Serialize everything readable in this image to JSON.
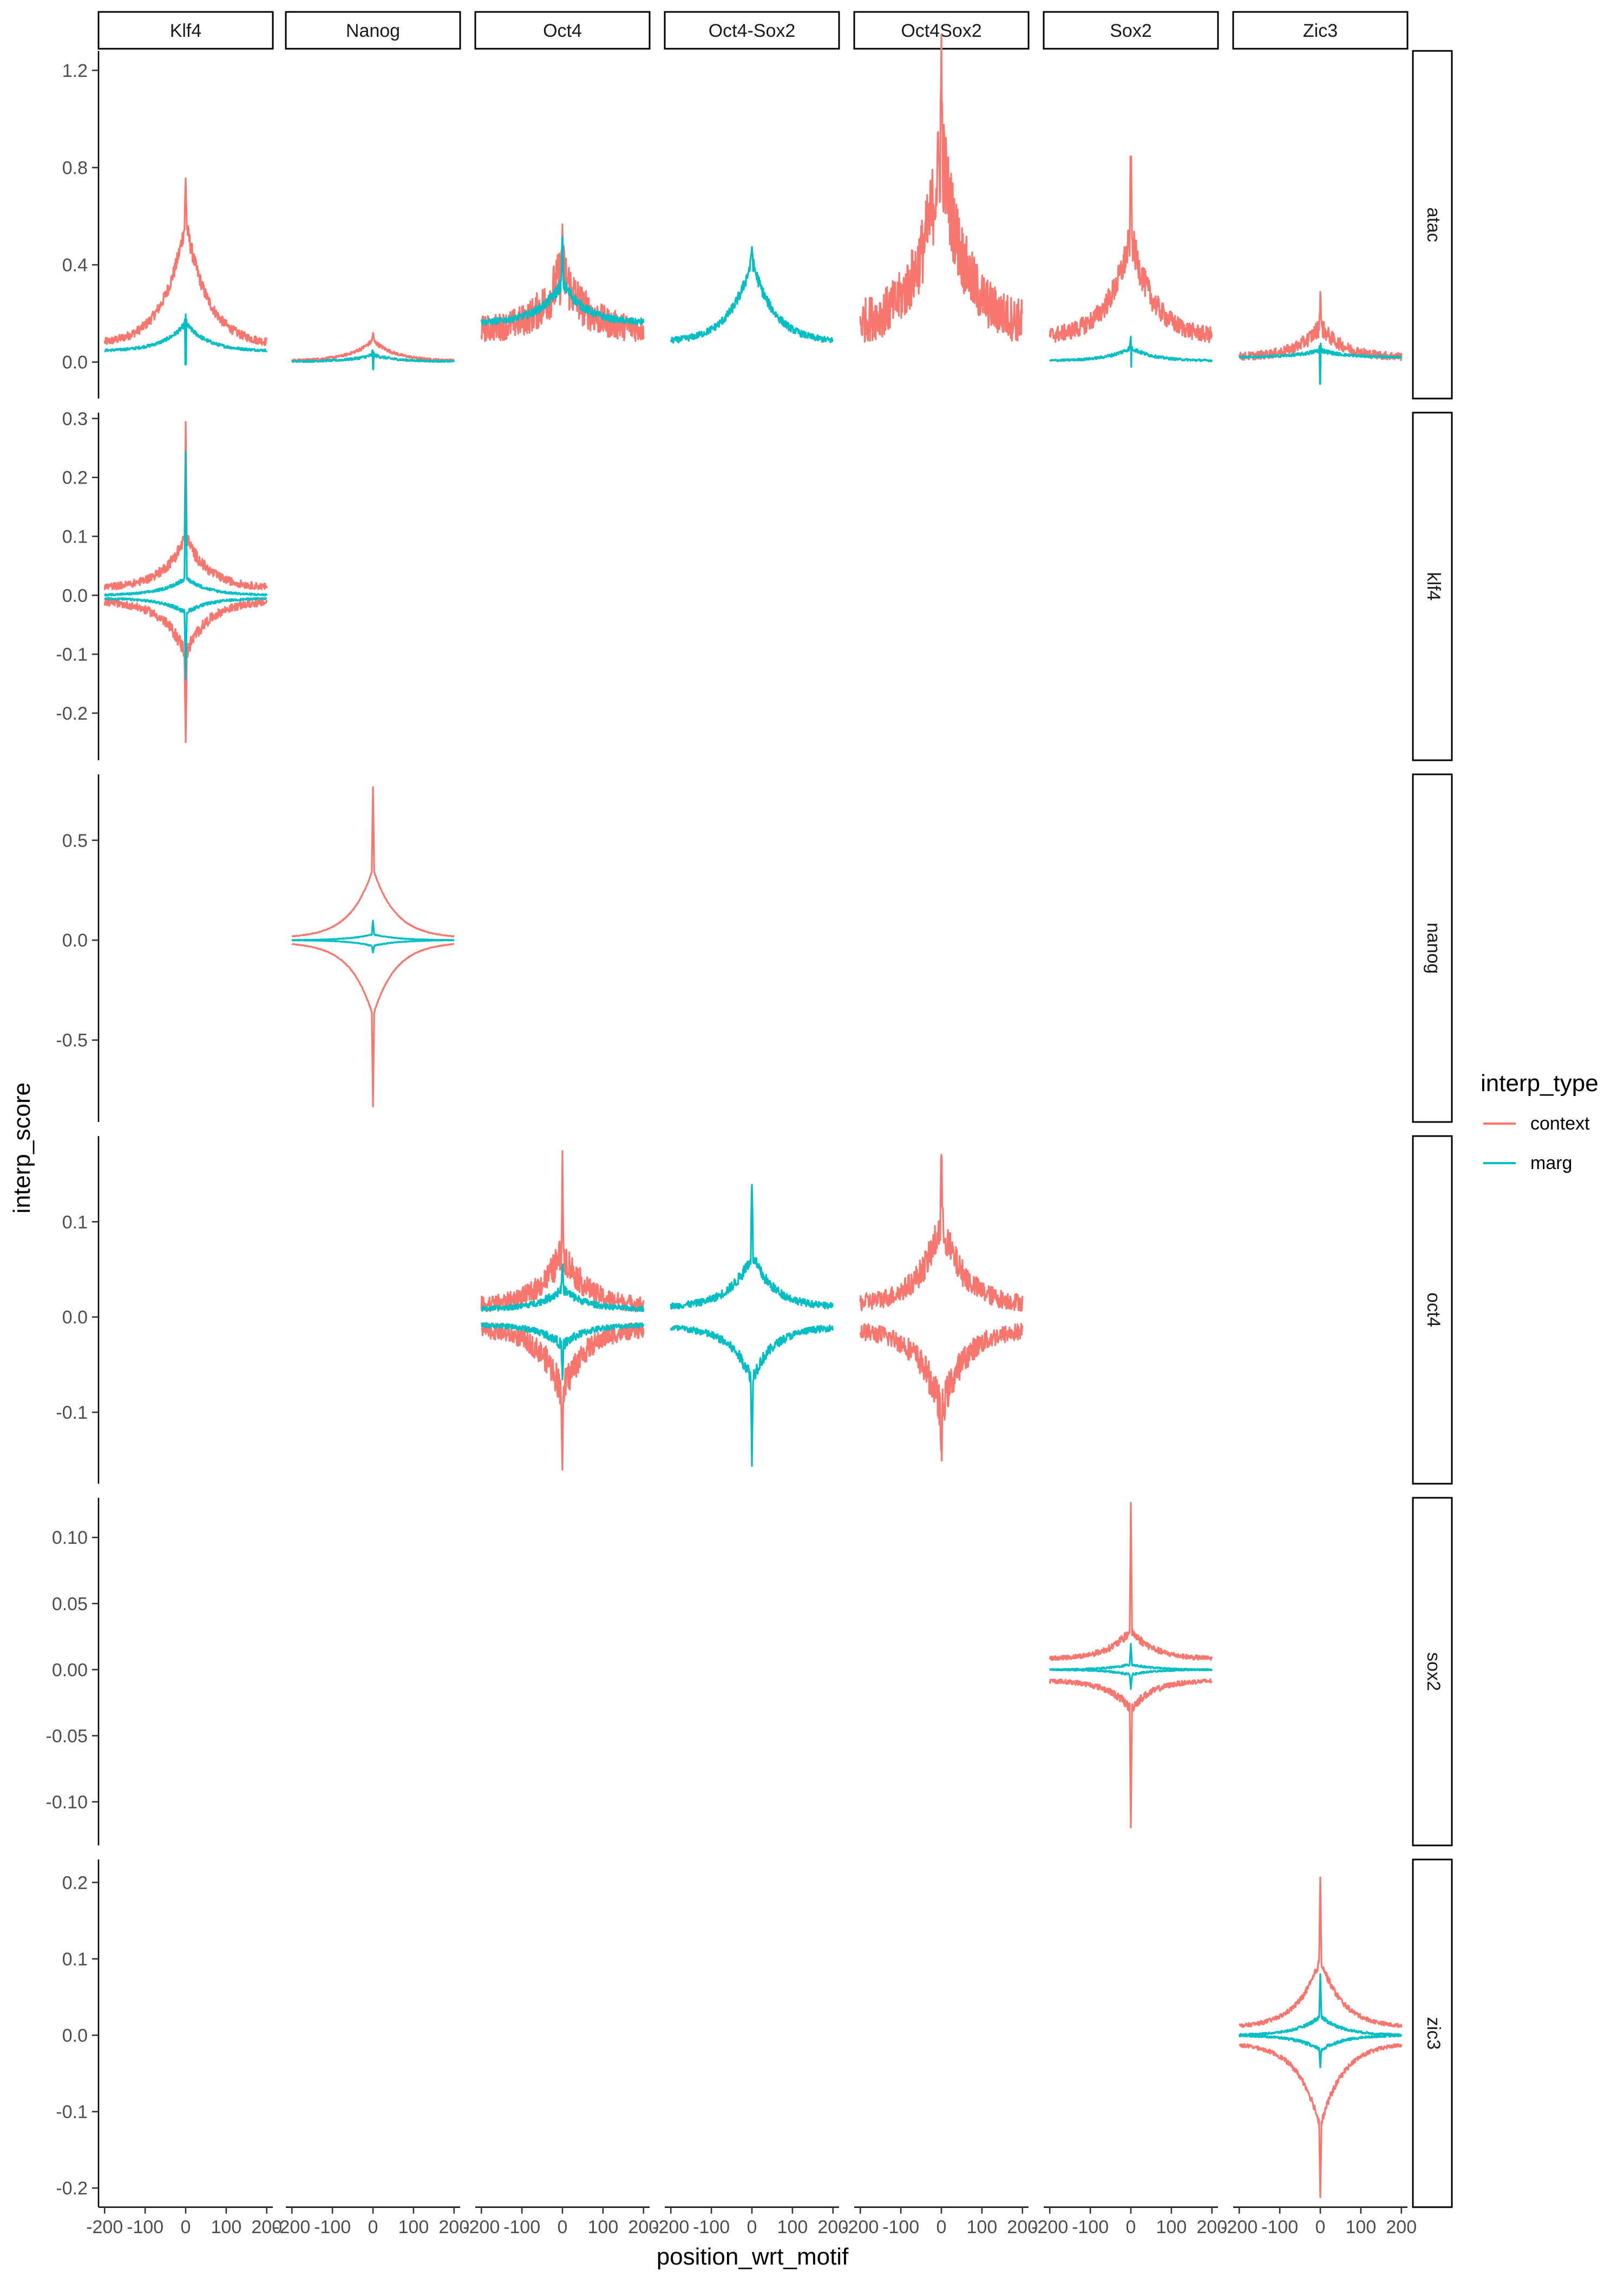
{
  "chart_data": {
    "type": "line",
    "xlabel": "position_wrt_motif",
    "ylabel": "interp_score",
    "x_range": [
      -215,
      215
    ],
    "x_ticks": [
      -200,
      -100,
      0,
      100,
      200
    ],
    "x_tick_labels": [
      "-200",
      "-100",
      "0",
      "100",
      "200"
    ],
    "grid": false,
    "legend": {
      "title": "interp_type",
      "position": "right",
      "entries": [
        {
          "label": "context",
          "color": "#F8766D"
        },
        {
          "label": "marg",
          "color": "#00BFC4"
        }
      ]
    },
    "columns": [
      "Klf4",
      "Nanog",
      "Oct4",
      "Oct4-Sox2",
      "Oct4Sox2",
      "Sox2",
      "Zic3"
    ],
    "rows": [
      {
        "name": "atac",
        "ylim": [
          -0.15,
          1.28
        ],
        "ticks": [
          0.0,
          0.4,
          0.8,
          1.2
        ],
        "tick_labels": [
          "0.0",
          "0.4",
          "0.8",
          "1.2"
        ]
      },
      {
        "name": "klf4",
        "ylim": [
          -0.28,
          0.31
        ],
        "ticks": [
          -0.2,
          -0.1,
          0.0,
          0.1,
          0.2,
          0.3
        ],
        "tick_labels": [
          "-0.2",
          "-0.1",
          "0.0",
          "0.1",
          "0.2",
          "0.3"
        ]
      },
      {
        "name": "nanog",
        "ylim": [
          -0.91,
          0.83
        ],
        "ticks": [
          -0.5,
          0.0,
          0.5
        ],
        "tick_labels": [
          "-0.5",
          "0.0",
          "0.5"
        ]
      },
      {
        "name": "oct4",
        "ylim": [
          -0.175,
          0.19
        ],
        "ticks": [
          -0.1,
          0.0,
          0.1
        ],
        "tick_labels": [
          "-0.1",
          "0.0",
          "0.1"
        ]
      },
      {
        "name": "sox2",
        "ylim": [
          -0.133,
          0.13
        ],
        "ticks": [
          -0.1,
          -0.05,
          0.0,
          0.05,
          0.1
        ],
        "tick_labels": [
          "-0.10",
          "-0.05",
          "0.00",
          "0.05",
          "0.10"
        ]
      },
      {
        "name": "zic3",
        "ylim": [
          -0.225,
          0.23
        ],
        "ticks": [
          -0.2,
          -0.1,
          0.0,
          0.1,
          0.2
        ],
        "tick_labels": [
          "-0.2",
          "-0.1",
          "0.0",
          "0.1",
          "0.2"
        ]
      }
    ],
    "panels": [
      {
        "row": "atac",
        "col": "Klf4",
        "series": [
          {
            "type": "context",
            "shape": "peak",
            "base": 0.07,
            "peak": 0.58,
            "spike": 0.75,
            "noise": 0.04
          },
          {
            "type": "marg",
            "shape": "peak",
            "base": 0.045,
            "peak": 0.16,
            "spike": 0.2,
            "noise": 0.012,
            "dip": -0.01
          }
        ]
      },
      {
        "row": "atac",
        "col": "Nanog",
        "series": [
          {
            "type": "context",
            "shape": "peak",
            "base": 0.005,
            "peak": 0.09,
            "spike": 0.12,
            "noise": 0.01
          },
          {
            "type": "marg",
            "shape": "peak",
            "base": 0.002,
            "peak": 0.03,
            "spike": 0.06,
            "noise": 0.008,
            "dip": -0.03
          }
        ]
      },
      {
        "row": "atac",
        "col": "Oct4",
        "series": [
          {
            "type": "context",
            "shape": "peak",
            "base": 0.13,
            "peak": 0.38,
            "spike": 0.56,
            "noise": 0.13
          },
          {
            "type": "marg",
            "shape": "peak",
            "base": 0.16,
            "peak": 0.33,
            "spike": 0.52,
            "noise": 0.03
          }
        ]
      },
      {
        "row": "atac",
        "col": "Oct4-Sox2",
        "series": [
          {
            "type": "marg",
            "shape": "peak",
            "base": 0.08,
            "peak": 0.42,
            "spike": 0.48,
            "noise": 0.03
          }
        ]
      },
      {
        "row": "atac",
        "col": "Oct4Sox2",
        "series": [
          {
            "type": "context",
            "shape": "peak",
            "base": 0.15,
            "peak": 0.88,
            "spike": 1.25,
            "noise": 0.22
          }
        ]
      },
      {
        "row": "atac",
        "col": "Sox2",
        "series": [
          {
            "type": "context",
            "shape": "peak",
            "base": 0.1,
            "peak": 0.52,
            "spike": 0.9,
            "noise": 0.08
          },
          {
            "type": "marg",
            "shape": "peak",
            "base": 0.005,
            "peak": 0.06,
            "spike": 0.1,
            "noise": 0.01,
            "dip": -0.02
          }
        ]
      },
      {
        "row": "atac",
        "col": "Zic3",
        "series": [
          {
            "type": "context",
            "shape": "peak",
            "base": 0.02,
            "peak": 0.15,
            "spike": 0.29,
            "noise": 0.04
          },
          {
            "type": "marg",
            "shape": "peak",
            "base": 0.02,
            "peak": 0.05,
            "spike": 0.09,
            "noise": 0.01,
            "dip": -0.09
          }
        ]
      },
      {
        "row": "klf4",
        "col": "Klf4",
        "series": [
          {
            "type": "context",
            "shape": "sym",
            "base": 0.012,
            "peak": 0.1,
            "spike": 0.29,
            "noise": 0.014,
            "neg_base": -0.01,
            "neg_peak": -0.1,
            "neg_spike": -0.26
          },
          {
            "type": "marg",
            "shape": "sym",
            "base": 0.0,
            "peak": 0.03,
            "spike": 0.24,
            "noise": 0.004,
            "neg_base": -0.005,
            "neg_peak": -0.03,
            "neg_spike": -0.14
          }
        ]
      },
      {
        "row": "nanog",
        "col": "Nanog",
        "series": [
          {
            "type": "context",
            "shape": "sym",
            "base": 0.01,
            "peak": 0.36,
            "spike": 0.77,
            "noise": 0.004,
            "neg_base": -0.01,
            "neg_peak": -0.38,
            "neg_spike": -0.83
          },
          {
            "type": "marg",
            "shape": "sym",
            "base": 0.0,
            "peak": 0.03,
            "spike": 0.1,
            "noise": 0.003,
            "neg_base": 0.0,
            "neg_peak": -0.03,
            "neg_spike": -0.06
          }
        ]
      },
      {
        "row": "oct4",
        "col": "Oct4",
        "series": [
          {
            "type": "context",
            "shape": "sym",
            "base": 0.012,
            "peak": 0.07,
            "spike": 0.155,
            "noise": 0.02,
            "neg_base": -0.012,
            "neg_peak": -0.08,
            "neg_spike": -0.16
          },
          {
            "type": "marg",
            "shape": "sym",
            "base": 0.008,
            "peak": 0.03,
            "spike": 0.06,
            "noise": 0.006,
            "neg_base": -0.008,
            "neg_peak": -0.03,
            "neg_spike": -0.07
          }
        ]
      },
      {
        "row": "oct4",
        "col": "Oct4-Sox2",
        "series": [
          {
            "type": "marg",
            "shape": "sym",
            "base": 0.01,
            "peak": 0.065,
            "spike": 0.145,
            "noise": 0.008,
            "neg_base": -0.01,
            "neg_peak": -0.065,
            "neg_spike": -0.155
          }
        ]
      },
      {
        "row": "oct4",
        "col": "Oct4Sox2",
        "series": [
          {
            "type": "context",
            "shape": "sym",
            "base": 0.013,
            "peak": 0.1,
            "spike": 0.175,
            "noise": 0.022,
            "neg_base": -0.013,
            "neg_peak": -0.1,
            "neg_spike": -0.16
          }
        ]
      },
      {
        "row": "sox2",
        "col": "Sox2",
        "series": [
          {
            "type": "context",
            "shape": "sym",
            "base": 0.008,
            "peak": 0.03,
            "spike": 0.123,
            "noise": 0.004,
            "neg_base": -0.008,
            "neg_peak": -0.03,
            "neg_spike": -0.12
          },
          {
            "type": "marg",
            "shape": "sym",
            "base": 0.0,
            "peak": 0.004,
            "spike": 0.02,
            "noise": 0.001,
            "neg_base": 0.0,
            "neg_peak": -0.004,
            "neg_spike": -0.015
          }
        ]
      },
      {
        "row": "zic3",
        "col": "Zic3",
        "series": [
          {
            "type": "context",
            "shape": "sym",
            "base": 0.01,
            "peak": 0.1,
            "spike": 0.21,
            "noise": 0.006,
            "neg_base": -0.01,
            "neg_peak": -0.12,
            "neg_spike": -0.21
          },
          {
            "type": "marg",
            "shape": "sym",
            "base": 0.0,
            "peak": 0.025,
            "spike": 0.08,
            "noise": 0.003,
            "neg_base": 0.0,
            "neg_peak": -0.02,
            "neg_spike": -0.04
          }
        ]
      }
    ]
  }
}
